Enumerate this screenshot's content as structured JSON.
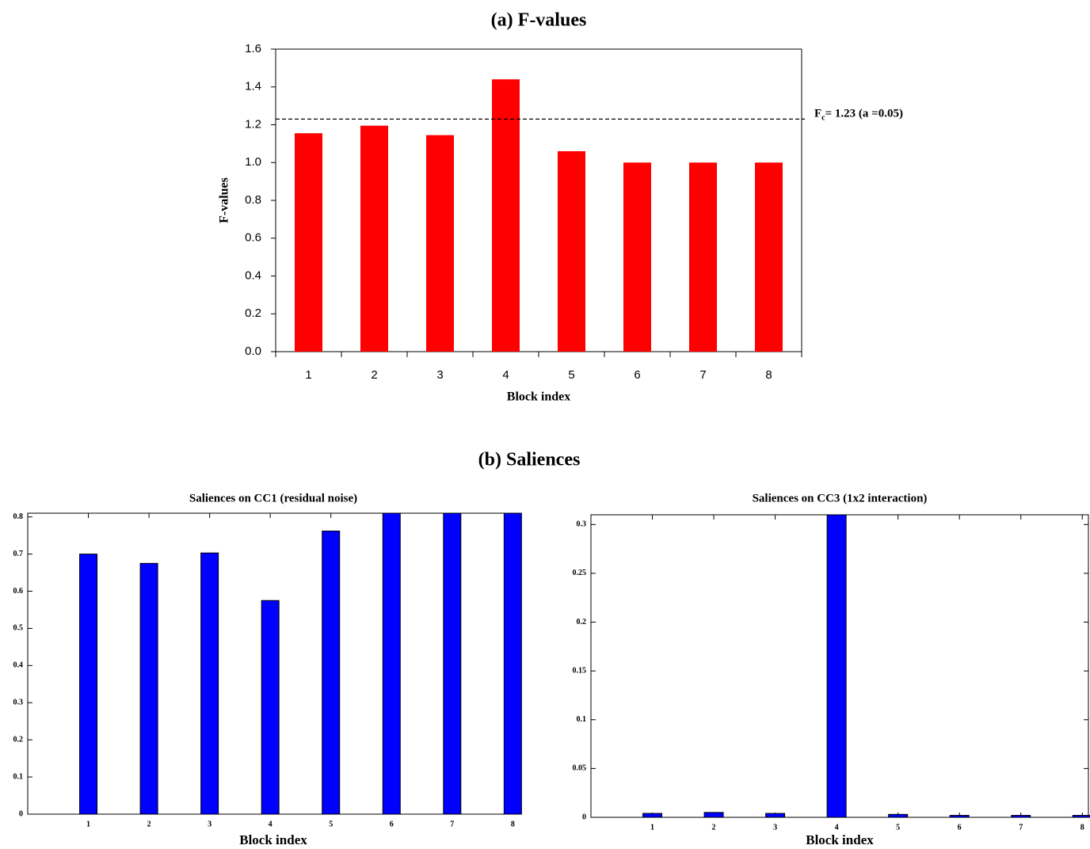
{
  "chart_data": [
    {
      "type": "bar",
      "title": "(a) F-values",
      "x_label": "Block index",
      "y_label": "F-values",
      "categories": [
        "1",
        "2",
        "3",
        "4",
        "5",
        "6",
        "7",
        "8"
      ],
      "values": [
        1.155,
        1.195,
        1.145,
        1.44,
        1.06,
        1.0,
        1.0,
        1.0
      ],
      "color": "#ff0000",
      "ylim": [
        0,
        1.6
      ],
      "yticks": [
        {
          "value": 0,
          "label": "0.0"
        },
        0.2,
        0.4,
        0.6,
        0.8,
        {
          "value": 1,
          "label": "1.0"
        },
        1.2,
        1.4,
        1.6
      ],
      "reference_line": {
        "value": 1.23,
        "label": "F",
        "label_subscript": "c",
        "label_suffix": "= 1.23 (a =0.05)"
      }
    },
    {
      "type": "bar",
      "title": "Saliences on CC1  (residual noise)",
      "x_label": "Block index",
      "x": [
        1,
        2,
        3,
        4,
        5,
        6,
        7,
        8
      ],
      "values": [
        0.7,
        0.675,
        0.703,
        0.575,
        0.762,
        0.81,
        0.81,
        0.81
      ],
      "color": "#0000ff",
      "xlim": [
        0,
        8.1
      ],
      "xticks": [
        1,
        2,
        3,
        4,
        5,
        6,
        7,
        8
      ],
      "ylim": [
        0,
        0.81
      ],
      "yticks": [
        0,
        0.1,
        0.2,
        0.3,
        0.4,
        0.5,
        0.6,
        0.7,
        0.8
      ]
    },
    {
      "type": "bar",
      "title": "Saliences on CC3  (1x2 interaction)",
      "x_label": "Block index",
      "x": [
        1,
        2,
        3,
        4,
        5,
        6,
        7,
        8
      ],
      "values": [
        0.004,
        0.005,
        0.004,
        0.31,
        0.003,
        0.002,
        0.002,
        0.002
      ],
      "color": "#0000ff",
      "xlim": [
        0,
        8.1
      ],
      "xticks": [
        1,
        2,
        3,
        4,
        5,
        6,
        7,
        8
      ],
      "ylim": [
        0,
        0.31
      ],
      "yticks": [
        0,
        0.05,
        0.1,
        0.15,
        0.2,
        0.25,
        0.3
      ]
    }
  ],
  "section_title": "(b) Saliences"
}
